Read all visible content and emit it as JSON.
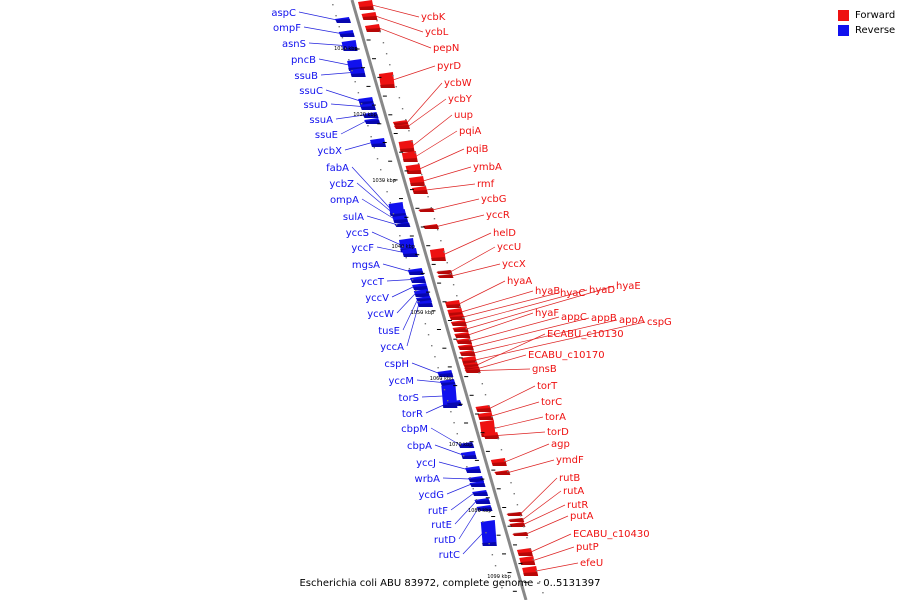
{
  "colors": {
    "forward": "#ee1111",
    "reverse": "#1111ee",
    "forward_dark": "#8a0000",
    "reverse_dark": "#00007a",
    "forward_line": "#dd2222",
    "reverse_line": "#2222dd",
    "axis": "#888888"
  },
  "legend": {
    "forward": "Forward",
    "reverse": "Reverse"
  },
  "caption": "Escherichia coli ABU 83972, complete genome - 0..5131397",
  "kbp_ticks": [
    "1010 kbp",
    "1020 kbp",
    "1030 kbp",
    "1040 kbp",
    "1050 kbp",
    "1060 kbp",
    "1070 kbp",
    "1080 kbp",
    "1090 kbp"
  ],
  "reverse_genes": [
    "aspC",
    "ompF",
    "asnS",
    "pncB",
    "ssuB",
    "ssuC",
    "ssuD",
    "ssuA",
    "ssuE",
    "ycbX",
    "fabA",
    "ycbZ",
    "ompA",
    "sulA",
    "yccS",
    "yccF",
    "mgsA",
    "yccT",
    "yccV",
    "yccW",
    "tusE",
    "yccA",
    "cspH",
    "yccM",
    "torS",
    "torR",
    "cbpM",
    "cbpA",
    "yccJ",
    "wrbA",
    "ycdG",
    "rutF",
    "rutE",
    "rutD",
    "rutC"
  ],
  "forward_genes": [
    "ycbK",
    "ycbL",
    "pepN",
    "pyrD",
    "ycbW",
    "ycbY",
    "uup",
    "pqiA",
    "pqiB",
    "ymbA",
    "rmf",
    "ycbG",
    "yccR",
    "helD",
    "yccU",
    "yccX",
    "hyaA",
    "hyaB",
    "hyaC",
    "hyaD",
    "hyaE",
    "hyaF",
    "appC",
    "appB",
    "appA",
    "cspG",
    "ECABU_c10130",
    "ECABU_c10170",
    "gnsB",
    "torT",
    "torC",
    "torA",
    "torD",
    "agp",
    "ymdF",
    "rutB",
    "rutA",
    "rutR",
    "putA",
    "ECABU_c10430",
    "putP",
    "efeU"
  ]
}
